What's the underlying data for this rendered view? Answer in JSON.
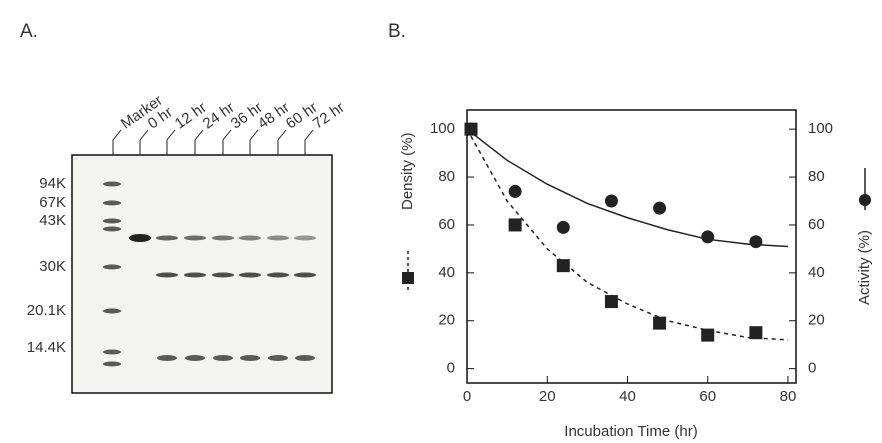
{
  "gel": {
    "label": "A.",
    "lanes": [
      "Marker",
      "0 hr",
      "12 hr",
      "24 hr",
      "36 hr",
      "48 hr",
      "60 hr",
      "72 hr"
    ],
    "markers": [
      "94K",
      "67K",
      "43K",
      "30K",
      "20.1K",
      "14.4K"
    ]
  },
  "chart_data": {
    "type": "scatter",
    "panel_label": "B.",
    "x_label": "Incubation Time (hr)",
    "xlim": [
      0,
      82
    ],
    "xticks": [
      0,
      20,
      40,
      60,
      80
    ],
    "ylim": [
      -6,
      108
    ],
    "yticks": [
      0,
      20,
      40,
      60,
      80,
      100
    ],
    "y2lim": [
      -6,
      108
    ],
    "y2ticks": [
      0,
      20,
      40,
      60,
      80,
      100
    ],
    "series": [
      {
        "name": "Density (%)",
        "color": "#222222",
        "marker": "square",
        "line": "dashed",
        "x": [
          1,
          12,
          24,
          36,
          48,
          60,
          72
        ],
        "values": [
          100,
          60,
          43,
          28,
          19,
          14,
          15
        ],
        "fit": {
          "x": [
            0,
            10,
            20,
            30,
            40,
            50,
            60,
            70,
            80
          ],
          "values": [
            100,
            70,
            50,
            36,
            27,
            20,
            16,
            13,
            12
          ]
        }
      },
      {
        "name": "Activity (%)",
        "color": "#222222",
        "marker": "circle",
        "line": "solid",
        "axis": "y2",
        "x": [
          1,
          12,
          24,
          36,
          48,
          60,
          72
        ],
        "values": [
          100,
          74,
          59,
          70,
          67,
          55,
          53
        ],
        "fit": {
          "x": [
            0,
            10,
            20,
            30,
            40,
            50,
            60,
            70,
            80
          ],
          "values": [
            100,
            87,
            77,
            69,
            63,
            58,
            54,
            52,
            51
          ]
        }
      }
    ]
  }
}
